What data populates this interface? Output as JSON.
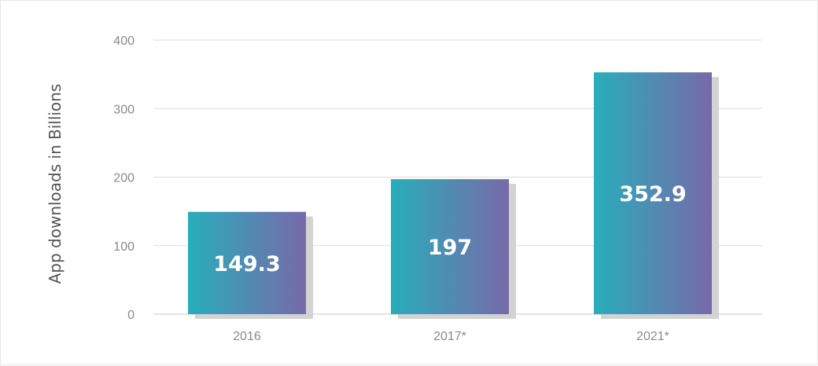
{
  "chart_data": {
    "type": "bar",
    "categories": [
      "2016",
      "2017*",
      "2021*"
    ],
    "values": [
      149.3,
      197,
      352.9
    ],
    "value_labels": [
      "149.3",
      "197",
      "352.9"
    ],
    "ylabel": "App downloads in Billions",
    "ylim": [
      0,
      400
    ],
    "yticks": [
      0,
      100,
      200,
      300,
      400
    ],
    "grid": true,
    "colors": {
      "bar_start": "#28aebb",
      "bar_end": "#7869a9",
      "bar_shadow": "#d3d3d3",
      "grid": "#dddddd",
      "axis": "#c8c8c8"
    }
  }
}
